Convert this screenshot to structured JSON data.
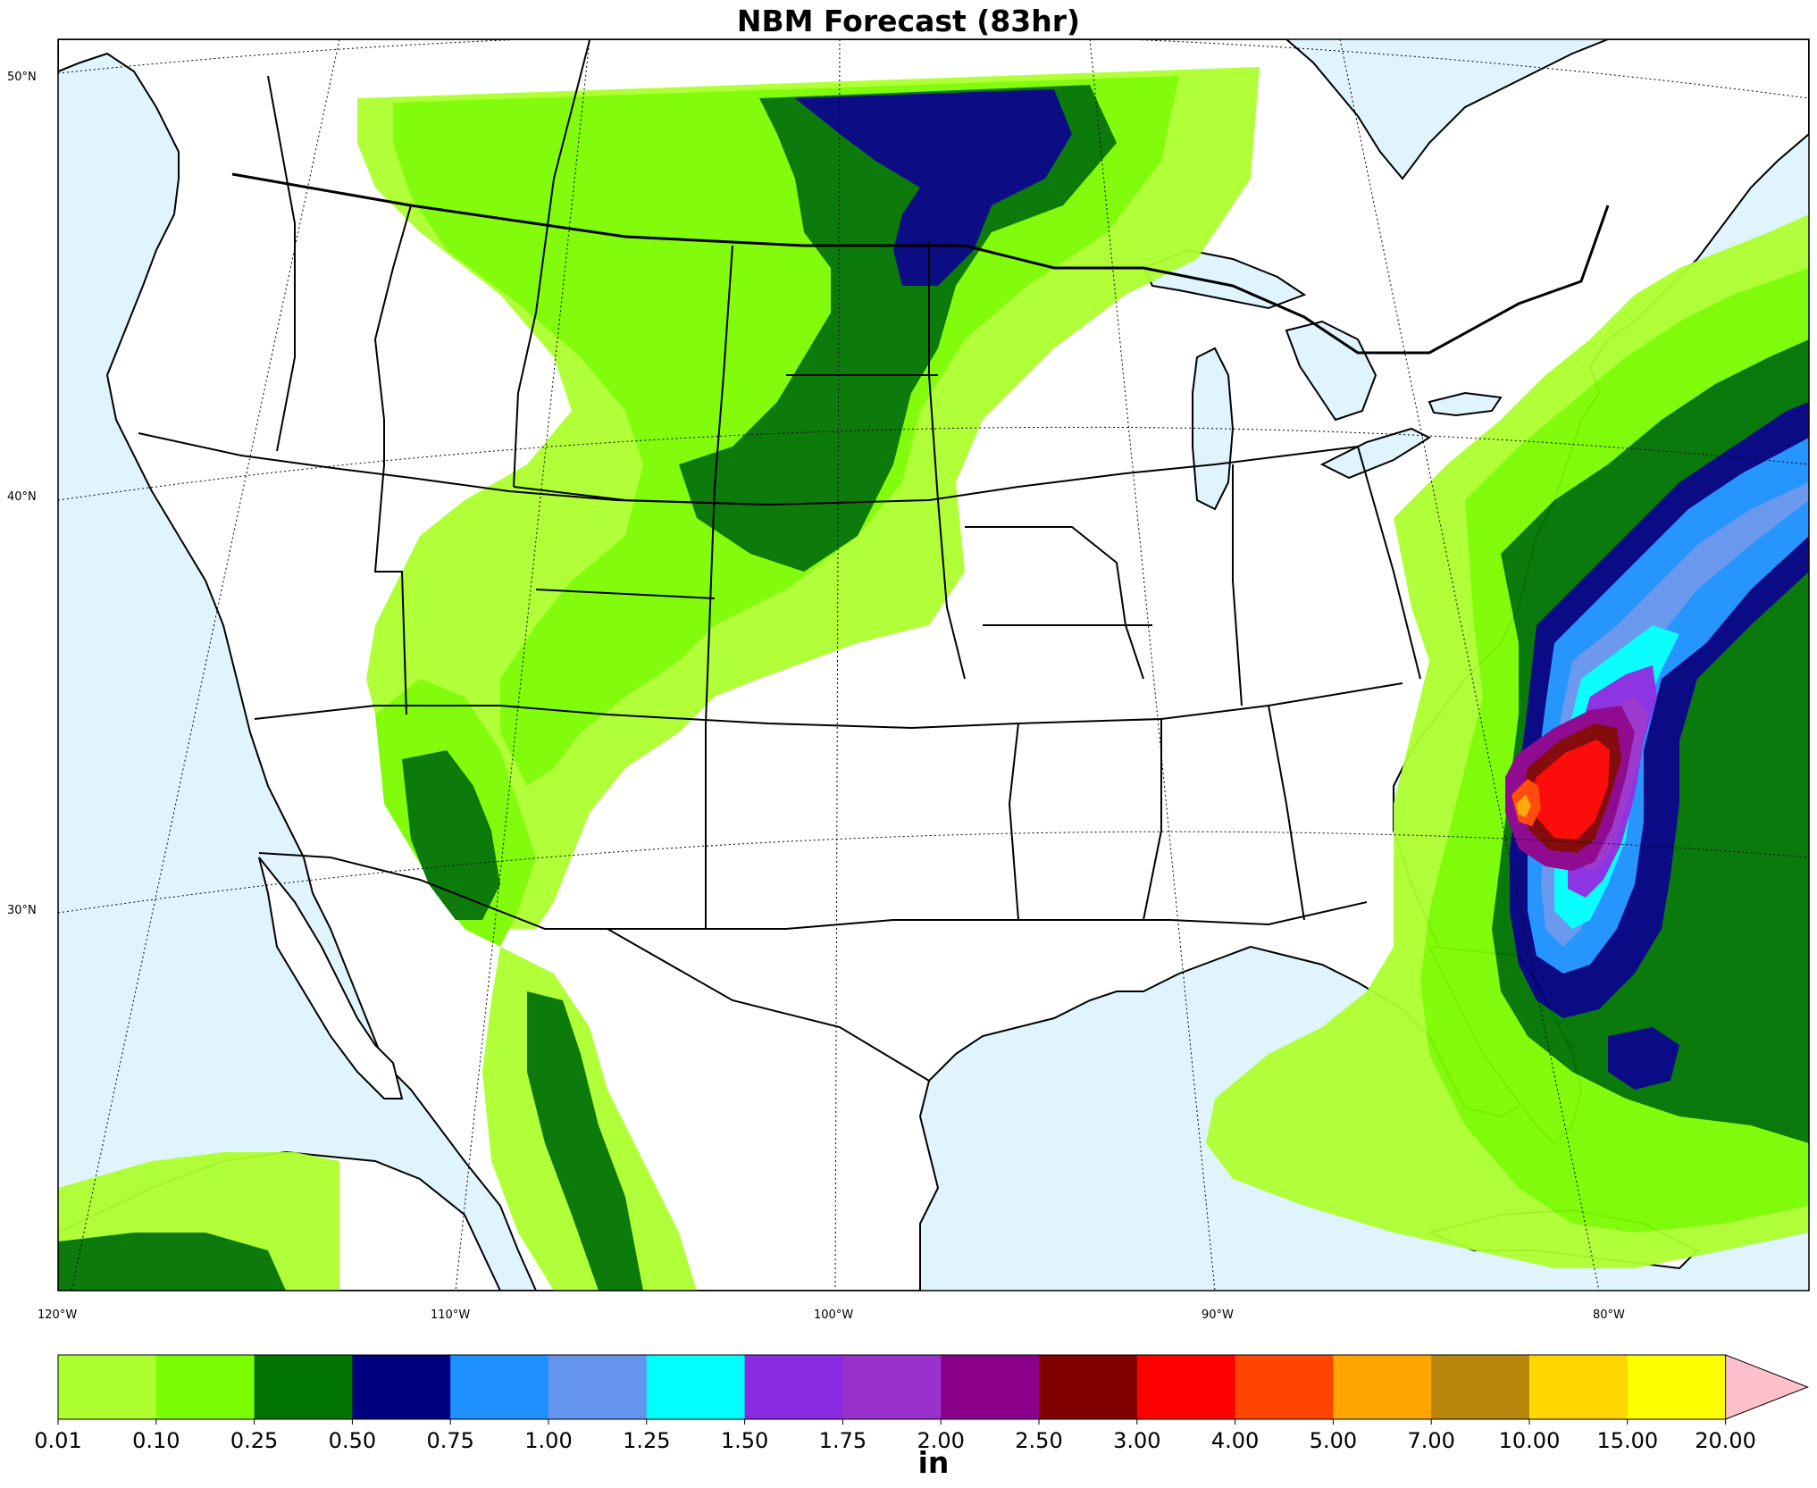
{
  "title": "NBM Forecast (83hr)",
  "latitude_labels": [
    "50°N",
    "40°N",
    "30°N"
  ],
  "longitude_labels": [
    "120°W",
    "110°W",
    "100°W",
    "90°W",
    "80°W"
  ],
  "colorbar": {
    "units": "in",
    "ticks": [
      "0.01",
      "0.10",
      "0.25",
      "0.50",
      "0.75",
      "1.00",
      "1.25",
      "1.50",
      "1.75",
      "2.00",
      "2.50",
      "3.00",
      "4.00",
      "5.00",
      "7.00",
      "10.00",
      "15.00",
      "20.00"
    ],
    "colors": [
      "#adff2f",
      "#7cfc00",
      "#007400",
      "#00007f",
      "#1e90ff",
      "#6495ed",
      "#00ffff",
      "#8a2be2",
      "#9932cc",
      "#8b008b",
      "#800000",
      "#ff0000",
      "#ff4500",
      "#ffa500",
      "#b8860b",
      "#ffd700",
      "#ffff00"
    ],
    "extend_color": "#ffc0cb"
  },
  "colors": {
    "ocean": "#dff4fd",
    "land": "#ffffff",
    "border": "#000000"
  }
}
